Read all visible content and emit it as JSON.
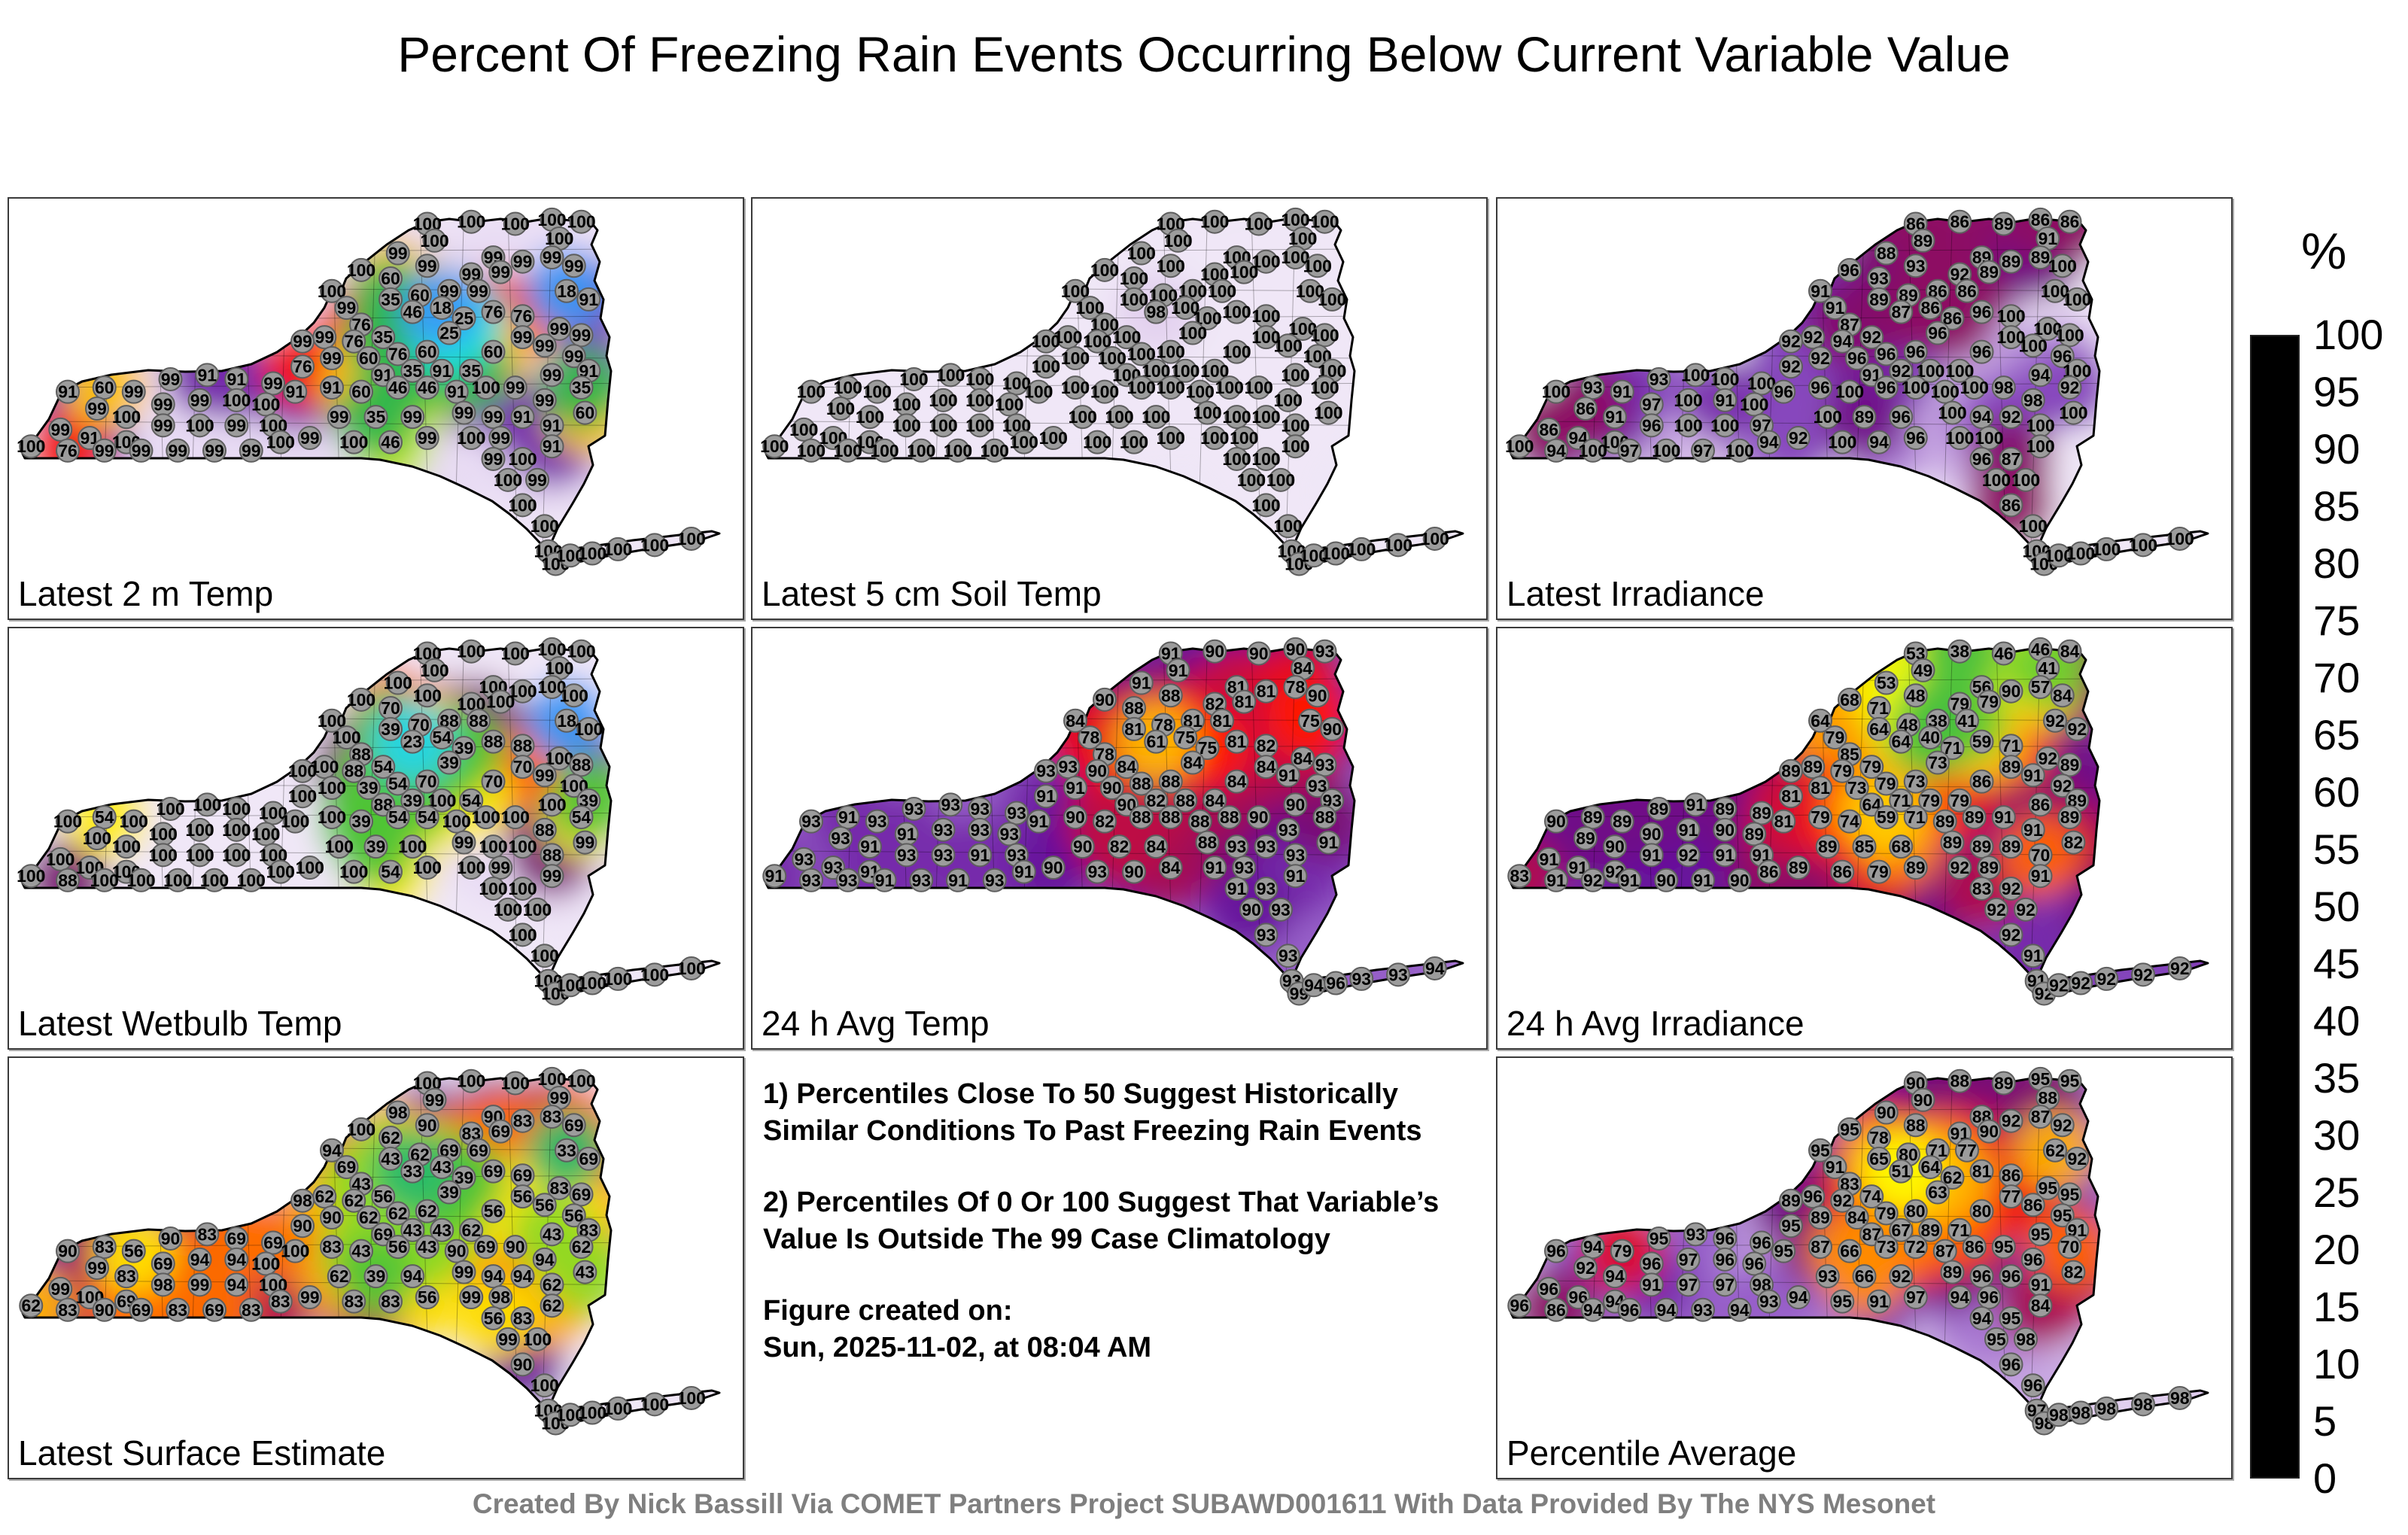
{
  "title": "Percent Of Freezing Rain Events Occurring Below Current Variable Value",
  "footer": "Created By Nick Bassill Via COMET Partners Project SUBAWD001611 With Data Provided By The NYS Mesonet",
  "notes": {
    "note1": "1) Percentiles Close To 50 Suggest Historically Similar Conditions To Past Freezing Rain Events",
    "note2": "2) Percentiles Of 0 Or 100 Suggest That Variable’s Value Is Outside The 99 Case Climatology",
    "created_label": "Figure created on:",
    "created_value": "Sun, 2025-11-02, at 08:04 AM"
  },
  "colorbar": {
    "unit": "%",
    "ticks": [
      100,
      95,
      90,
      85,
      80,
      75,
      70,
      65,
      60,
      55,
      50,
      45,
      40,
      35,
      30,
      25,
      20,
      15,
      10,
      5,
      0
    ],
    "min": 0,
    "max": 100
  },
  "colormap_stops": [
    [
      0,
      "#000000"
    ],
    [
      2.5,
      "#0a0640"
    ],
    [
      5,
      "#10087f"
    ],
    [
      10,
      "#1515e0"
    ],
    [
      15,
      "#2f63f2"
    ],
    [
      20,
      "#3fbdf7"
    ],
    [
      25,
      "#16e7e0"
    ],
    [
      30,
      "#1cc39b"
    ],
    [
      35,
      "#2eb54d"
    ],
    [
      40,
      "#59c832"
    ],
    [
      45,
      "#b5e51d"
    ],
    [
      50,
      "#ffff00"
    ],
    [
      55,
      "#ffe900"
    ],
    [
      60,
      "#ffc400"
    ],
    [
      65,
      "#ff9500"
    ],
    [
      70,
      "#ff6400"
    ],
    [
      75,
      "#ff1500"
    ],
    [
      80,
      "#d60d35"
    ],
    [
      85,
      "#970f5c"
    ],
    [
      88,
      "#7a0f73"
    ],
    [
      90,
      "#66119b"
    ],
    [
      92.5,
      "#8d52c4"
    ],
    [
      95,
      "#b88fd9"
    ],
    [
      97.5,
      "#ddcaec"
    ],
    [
      100,
      "#efe7f7"
    ]
  ],
  "stations": [
    [
      57,
      6
    ],
    [
      63,
      5.5
    ],
    [
      69,
      6
    ],
    [
      74,
      5
    ],
    [
      78,
      5.5
    ],
    [
      58,
      10
    ],
    [
      75,
      9.5
    ],
    [
      53,
      13
    ],
    [
      57,
      16
    ],
    [
      66,
      14
    ],
    [
      70,
      15
    ],
    [
      74,
      14
    ],
    [
      77,
      16
    ],
    [
      48,
      17
    ],
    [
      52,
      19
    ],
    [
      63,
      18
    ],
    [
      67,
      17.5
    ],
    [
      52,
      24
    ],
    [
      56,
      23
    ],
    [
      60,
      22
    ],
    [
      64,
      22
    ],
    [
      76,
      22
    ],
    [
      55,
      27
    ],
    [
      59,
      26
    ],
    [
      62,
      28.5
    ],
    [
      66,
      27
    ],
    [
      70,
      28
    ],
    [
      60,
      32
    ],
    [
      79,
      24
    ],
    [
      75,
      31
    ],
    [
      78,
      32.5
    ],
    [
      73,
      35
    ],
    [
      77,
      37.5
    ],
    [
      79,
      41
    ],
    [
      74,
      42
    ],
    [
      78,
      45
    ],
    [
      73,
      48
    ],
    [
      78.5,
      51
    ],
    [
      74,
      54
    ],
    [
      44,
      22
    ],
    [
      46,
      26
    ],
    [
      48,
      30
    ],
    [
      43,
      33
    ],
    [
      47,
      34
    ],
    [
      51,
      33
    ],
    [
      44,
      38
    ],
    [
      49,
      38
    ],
    [
      53,
      37
    ],
    [
      57,
      36.5
    ],
    [
      66,
      36.5
    ],
    [
      70,
      33
    ],
    [
      51,
      42
    ],
    [
      55,
      41
    ],
    [
      59,
      41
    ],
    [
      63,
      41
    ],
    [
      8,
      46
    ],
    [
      13,
      45
    ],
    [
      17,
      46
    ],
    [
      22,
      43
    ],
    [
      27,
      42
    ],
    [
      31,
      43
    ],
    [
      36,
      44
    ],
    [
      40,
      40
    ],
    [
      40,
      34
    ],
    [
      12,
      50
    ],
    [
      16,
      52
    ],
    [
      21,
      49
    ],
    [
      26,
      48
    ],
    [
      31,
      48
    ],
    [
      35,
      49
    ],
    [
      39,
      46
    ],
    [
      7,
      55
    ],
    [
      11,
      57
    ],
    [
      16,
      58
    ],
    [
      21,
      54
    ],
    [
      26,
      54
    ],
    [
      31,
      54
    ],
    [
      36,
      54
    ],
    [
      3,
      59
    ],
    [
      8,
      60
    ],
    [
      13,
      60
    ],
    [
      18,
      60
    ],
    [
      23,
      60
    ],
    [
      28,
      60
    ],
    [
      33,
      60
    ],
    [
      37,
      58
    ],
    [
      41,
      57
    ],
    [
      44,
      45
    ],
    [
      48,
      46
    ],
    [
      53,
      45
    ],
    [
      57,
      45
    ],
    [
      45,
      52
    ],
    [
      50,
      52
    ],
    [
      55,
      52
    ],
    [
      47,
      58
    ],
    [
      52,
      58
    ],
    [
      57,
      57
    ],
    [
      61,
      46
    ],
    [
      65,
      45
    ],
    [
      69,
      45
    ],
    [
      62,
      51
    ],
    [
      66,
      52
    ],
    [
      70,
      52
    ],
    [
      63,
      57
    ],
    [
      67,
      57
    ],
    [
      66,
      62
    ],
    [
      70,
      62
    ],
    [
      74,
      59
    ],
    [
      68,
      67
    ],
    [
      72,
      67
    ],
    [
      70,
      73
    ],
    [
      73,
      78
    ],
    [
      73.5,
      84
    ],
    [
      74.5,
      87
    ],
    [
      76.5,
      85
    ],
    [
      79.5,
      84.5
    ],
    [
      83,
      83.5
    ],
    [
      88,
      82.5
    ],
    [
      93,
      81
    ]
  ],
  "panels": [
    {
      "id": "latest-2m-temp",
      "label": "Latest 2 m Temp",
      "values": [
        100,
        100,
        100,
        100,
        100,
        100,
        100,
        99,
        99,
        99,
        99,
        99,
        99,
        100,
        60,
        99,
        99,
        35,
        60,
        99,
        99,
        18,
        46,
        18,
        25,
        76,
        76,
        25,
        91,
        99,
        99,
        99,
        99,
        91,
        99,
        35,
        99,
        60,
        91,
        100,
        99,
        76,
        99,
        76,
        35,
        99,
        60,
        76,
        60,
        60,
        99,
        91,
        35,
        91,
        35,
        91,
        60,
        99,
        99,
        91,
        91,
        99,
        76,
        99,
        99,
        100,
        99,
        99,
        100,
        100,
        91,
        99,
        91,
        100,
        99,
        100,
        99,
        100,
        100,
        76,
        99,
        99,
        99,
        99,
        99,
        100,
        99,
        91,
        60,
        46,
        46,
        99,
        35,
        99,
        100,
        46,
        99,
        91,
        100,
        99,
        99,
        99,
        91,
        100,
        99,
        99,
        100,
        91,
        100,
        99,
        100,
        100,
        100,
        100,
        100,
        100,
        100,
        100,
        100
      ]
    },
    {
      "id": "latest-5cm-soil-temp",
      "label": "Latest 5 cm Soil Temp",
      "values": [
        100,
        100,
        100,
        100,
        100,
        100,
        100,
        100,
        100,
        100,
        100,
        100,
        100,
        100,
        100,
        100,
        100,
        100,
        100,
        100,
        100,
        100,
        98,
        100,
        100,
        100,
        100,
        100,
        100,
        100,
        100,
        100,
        100,
        100,
        100,
        100,
        100,
        100,
        100,
        100,
        100,
        100,
        100,
        100,
        100,
        100,
        100,
        100,
        100,
        100,
        100,
        100,
        100,
        100,
        100,
        100,
        100,
        100,
        100,
        100,
        100,
        100,
        100,
        100,
        100,
        100,
        100,
        100,
        100,
        100,
        100,
        100,
        100,
        100,
        100,
        100,
        100,
        100,
        100,
        100,
        100,
        100,
        100,
        100,
        100,
        100,
        100,
        100,
        100,
        100,
        100,
        100,
        100,
        100,
        100,
        100,
        100,
        100,
        100,
        100,
        100,
        100,
        100,
        100,
        100,
        100,
        100,
        100,
        100,
        100,
        100,
        100,
        100,
        100,
        100,
        100,
        100,
        100,
        100
      ]
    },
    {
      "id": "latest-irradiance",
      "label": "Latest Irradiance",
      "values": [
        86,
        86,
        89,
        86,
        86,
        89,
        91,
        88,
        93,
        89,
        89,
        89,
        100,
        96,
        93,
        92,
        89,
        89,
        89,
        86,
        86,
        100,
        87,
        86,
        86,
        96,
        100,
        96,
        100,
        100,
        100,
        100,
        96,
        100,
        94,
        92,
        98,
        100,
        100,
        91,
        91,
        87,
        92,
        94,
        92,
        92,
        96,
        96,
        96,
        96,
        100,
        91,
        92,
        100,
        100,
        100,
        93,
        91,
        93,
        100,
        100,
        100,
        92,
        92,
        86,
        91,
        97,
        100,
        91,
        100,
        96,
        86,
        94,
        100,
        96,
        100,
        100,
        97,
        100,
        94,
        100,
        97,
        100,
        97,
        100,
        94,
        92,
        96,
        100,
        96,
        100,
        100,
        89,
        96,
        100,
        94,
        96,
        100,
        100,
        98,
        100,
        94,
        92,
        100,
        100,
        96,
        87,
        100,
        100,
        100,
        86,
        100,
        100,
        100,
        100,
        100,
        100,
        100,
        100
      ]
    },
    {
      "id": "latest-wetbulb-temp",
      "label": "Latest Wetbulb Temp",
      "values": [
        100,
        100,
        100,
        100,
        100,
        100,
        100,
        100,
        100,
        100,
        100,
        100,
        100,
        100,
        70,
        100,
        100,
        39,
        70,
        88,
        88,
        18,
        23,
        54,
        39,
        88,
        88,
        39,
        100,
        100,
        88,
        99,
        100,
        39,
        100,
        54,
        88,
        99,
        88,
        100,
        100,
        88,
        100,
        88,
        54,
        100,
        39,
        54,
        70,
        70,
        70,
        88,
        39,
        100,
        54,
        100,
        54,
        100,
        100,
        100,
        100,
        100,
        100,
        100,
        100,
        100,
        100,
        100,
        100,
        100,
        100,
        100,
        100,
        100,
        100,
        100,
        100,
        100,
        100,
        88,
        100,
        100,
        100,
        100,
        100,
        100,
        100,
        100,
        39,
        54,
        54,
        100,
        39,
        100,
        100,
        54,
        100,
        100,
        100,
        100,
        99,
        100,
        100,
        100,
        99,
        100,
        100,
        99,
        100,
        100,
        100,
        100,
        100,
        100,
        100,
        100,
        100,
        100,
        100
      ]
    },
    {
      "id": "24h-avg-temp",
      "label": "24 h Avg Temp",
      "values": [
        91,
        90,
        90,
        90,
        93,
        91,
        84,
        91,
        88,
        81,
        81,
        78,
        90,
        90,
        88,
        82,
        81,
        81,
        78,
        81,
        81,
        75,
        61,
        75,
        75,
        81,
        82,
        84,
        90,
        84,
        93,
        91,
        93,
        93,
        90,
        88,
        93,
        91,
        93,
        84,
        78,
        78,
        93,
        90,
        84,
        91,
        90,
        88,
        88,
        84,
        84,
        90,
        82,
        88,
        84,
        93,
        91,
        93,
        93,
        93,
        93,
        93,
        91,
        93,
        93,
        91,
        91,
        93,
        93,
        93,
        91,
        93,
        93,
        91,
        93,
        93,
        91,
        93,
        91,
        93,
        93,
        91,
        93,
        91,
        93,
        91,
        90,
        90,
        82,
        88,
        88,
        90,
        82,
        84,
        93,
        90,
        84,
        88,
        88,
        90,
        88,
        93,
        93,
        91,
        93,
        91,
        93,
        91,
        90,
        93,
        93,
        93,
        93,
        99,
        94,
        96,
        93,
        93,
        94
      ]
    },
    {
      "id": "24h-avg-irradiance",
      "label": "24 h Avg Irradiance",
      "values": [
        53,
        38,
        46,
        46,
        84,
        49,
        41,
        53,
        48,
        56,
        90,
        57,
        84,
        68,
        71,
        79,
        79,
        64,
        48,
        38,
        41,
        92,
        64,
        40,
        71,
        59,
        71,
        73,
        92,
        92,
        89,
        91,
        92,
        89,
        86,
        89,
        91,
        82,
        70,
        64,
        79,
        85,
        89,
        79,
        79,
        81,
        73,
        79,
        73,
        86,
        89,
        64,
        71,
        79,
        79,
        90,
        89,
        89,
        89,
        91,
        89,
        89,
        81,
        89,
        89,
        90,
        90,
        91,
        90,
        89,
        81,
        91,
        91,
        92,
        91,
        92,
        91,
        91,
        83,
        91,
        92,
        91,
        90,
        91,
        90,
        86,
        89,
        79,
        74,
        59,
        71,
        89,
        85,
        68,
        86,
        79,
        89,
        89,
        89,
        91,
        89,
        89,
        89,
        92,
        89,
        83,
        92,
        91,
        92,
        92,
        92,
        91,
        91,
        92,
        92,
        92,
        92,
        92,
        92
      ]
    },
    {
      "id": "latest-surface-estimate",
      "label": "Latest Surface Estimate",
      "values": [
        100,
        100,
        100,
        100,
        100,
        99,
        99,
        98,
        90,
        90,
        83,
        83,
        69,
        100,
        62,
        83,
        69,
        43,
        62,
        69,
        69,
        33,
        33,
        43,
        39,
        69,
        69,
        39,
        69,
        83,
        69,
        56,
        56,
        83,
        43,
        62,
        94,
        43,
        62,
        94,
        69,
        43,
        62,
        62,
        56,
        90,
        62,
        62,
        62,
        56,
        56,
        69,
        43,
        43,
        62,
        90,
        83,
        56,
        90,
        83,
        69,
        69,
        90,
        98,
        99,
        83,
        69,
        94,
        94,
        100,
        100,
        99,
        100,
        69,
        98,
        99,
        94,
        100,
        62,
        83,
        90,
        69,
        83,
        69,
        83,
        83,
        99,
        83,
        43,
        56,
        43,
        62,
        39,
        94,
        83,
        83,
        56,
        90,
        69,
        90,
        99,
        94,
        94,
        99,
        98,
        56,
        83,
        62,
        99,
        100,
        90,
        100,
        100,
        100,
        100,
        100,
        100,
        100,
        100
      ]
    },
    {
      "id": "percentile-average",
      "label": "Percentile Average",
      "values": [
        90,
        88,
        89,
        95,
        95,
        90,
        88,
        90,
        88,
        88,
        92,
        87,
        92,
        95,
        78,
        91,
        90,
        65,
        80,
        71,
        77,
        62,
        51,
        64,
        62,
        81,
        86,
        63,
        92,
        95,
        95,
        86,
        95,
        91,
        95,
        70,
        96,
        82,
        91,
        95,
        91,
        83,
        96,
        92,
        74,
        89,
        84,
        79,
        80,
        80,
        77,
        87,
        67,
        89,
        71,
        96,
        94,
        79,
        95,
        93,
        96,
        96,
        95,
        89,
        92,
        94,
        96,
        97,
        96,
        96,
        95,
        96,
        96,
        94,
        91,
        97,
        97,
        98,
        96,
        86,
        94,
        96,
        94,
        93,
        94,
        93,
        94,
        87,
        66,
        73,
        72,
        93,
        66,
        92,
        95,
        91,
        97,
        87,
        86,
        95,
        89,
        96,
        96,
        94,
        96,
        94,
        95,
        84,
        95,
        98,
        96,
        96,
        97,
        98,
        98,
        98,
        98,
        98,
        98
      ]
    }
  ]
}
